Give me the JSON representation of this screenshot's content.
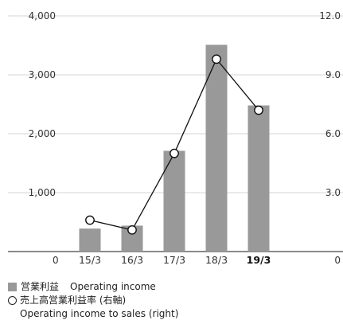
{
  "chart_data": {
    "type": "bar",
    "categories": [
      "15/3",
      "16/3",
      "17/3",
      "18/3",
      "19/3"
    ],
    "highlight_category": "19/3",
    "series": [
      {
        "name": "営業利益 Operating income",
        "type": "bar",
        "axis": "left",
        "color": "#999999",
        "values": [
          390,
          440,
          1710,
          3510,
          2480
        ]
      },
      {
        "name": "売上高営業利益率 (右軸) Operating income to sales (right)",
        "type": "line",
        "axis": "right",
        "color": "#111111",
        "marker": "hollow-circle",
        "values": [
          1.6,
          1.1,
          5.0,
          9.8,
          7.2
        ]
      }
    ],
    "left_axis": {
      "ylim": [
        0,
        4000
      ],
      "ticks": [
        "0",
        "1,000",
        "2,000",
        "3,000",
        "4,000"
      ],
      "tick_values": [
        0,
        1000,
        2000,
        3000,
        4000
      ]
    },
    "right_axis": {
      "ylim": [
        0,
        12
      ],
      "ticks": [
        "0",
        "3.0",
        "6.0",
        "9.0",
        "12.0"
      ],
      "tick_values": [
        0,
        3,
        6,
        9,
        12
      ]
    },
    "grid": true,
    "legend_position": "bottom-left"
  },
  "legend": {
    "bar_label_jp": "営業利益",
    "bar_label_en": "Operating income",
    "line_label_jp": "売上高営業利益率 (右軸)",
    "line_label_en": "Operating income to sales (right)"
  }
}
